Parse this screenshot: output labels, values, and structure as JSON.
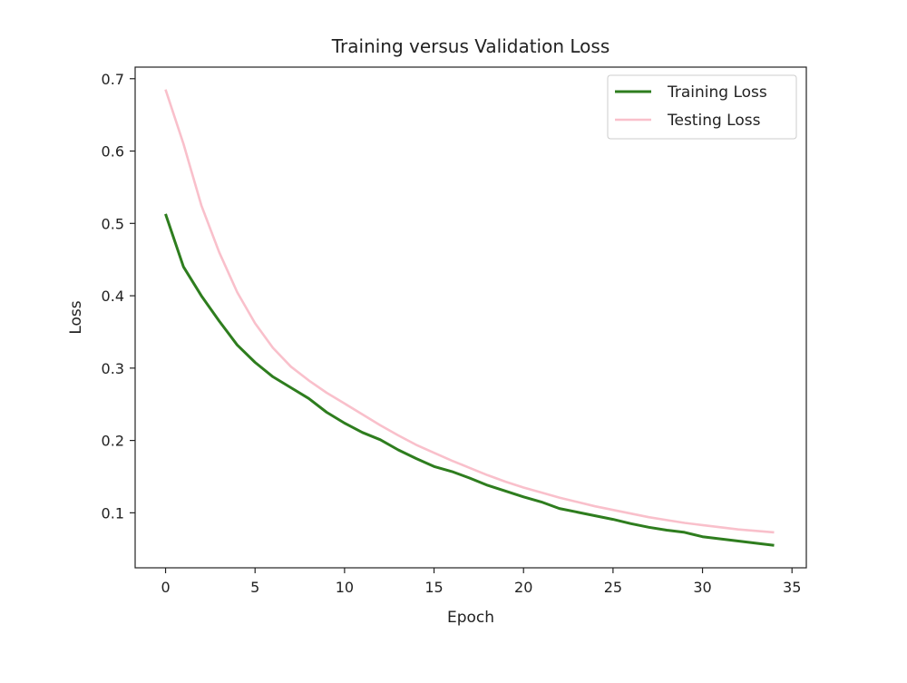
{
  "chart_data": {
    "type": "line",
    "title": "Training versus Validation Loss",
    "xlabel": "Epoch",
    "ylabel": "Loss",
    "xlim": [
      -1.7,
      35.8
    ],
    "ylim": [
      0.024,
      0.716
    ],
    "xticks": [
      0,
      5,
      10,
      15,
      20,
      25,
      30,
      35
    ],
    "yticks": [
      0.1,
      0.2,
      0.3,
      0.4,
      0.5,
      0.6,
      0.7
    ],
    "grid": false,
    "legend_position": "top-right",
    "x": [
      0,
      1,
      2,
      3,
      4,
      5,
      6,
      7,
      8,
      9,
      10,
      11,
      12,
      13,
      14,
      15,
      16,
      17,
      18,
      19,
      20,
      21,
      22,
      23,
      24,
      25,
      26,
      27,
      28,
      29,
      30,
      31,
      32,
      33,
      34
    ],
    "series": [
      {
        "name": "Training Loss",
        "color": "#2e7d1e",
        "values": [
          0.513,
          0.44,
          0.4,
          0.365,
          0.332,
          0.308,
          0.288,
          0.273,
          0.258,
          0.239,
          0.224,
          0.211,
          0.201,
          0.187,
          0.175,
          0.164,
          0.157,
          0.148,
          0.138,
          0.13,
          0.122,
          0.115,
          0.106,
          0.101,
          0.096,
          0.091,
          0.085,
          0.08,
          0.076,
          0.073,
          0.067,
          0.064,
          0.061,
          0.058,
          0.055
        ]
      },
      {
        "name": "Testing Loss",
        "color": "#f9c0cb",
        "values": [
          0.685,
          0.61,
          0.525,
          0.46,
          0.405,
          0.362,
          0.328,
          0.302,
          0.283,
          0.266,
          0.251,
          0.236,
          0.221,
          0.207,
          0.194,
          0.183,
          0.172,
          0.162,
          0.152,
          0.143,
          0.135,
          0.128,
          0.121,
          0.115,
          0.109,
          0.104,
          0.099,
          0.094,
          0.09,
          0.086,
          0.083,
          0.08,
          0.077,
          0.075,
          0.073
        ]
      }
    ]
  }
}
